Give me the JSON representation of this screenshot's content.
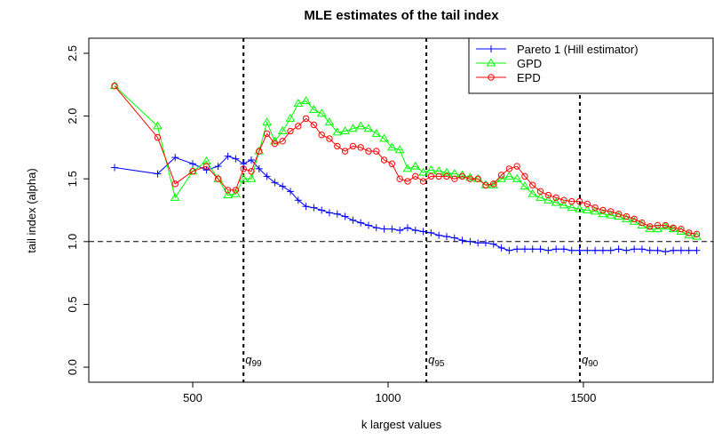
{
  "chart_data": {
    "type": "line",
    "title": "MLE estimates of the tail index",
    "xlabel": "k largest values",
    "ylabel": "tail index (alpha)",
    "xlim": [
      234,
      1832
    ],
    "ylim": [
      -0.12,
      2.62
    ],
    "xticks": [
      500,
      1000,
      1500
    ],
    "yticks": [
      {
        "value": 0,
        "label": "0.0"
      },
      0.5,
      {
        "value": 1,
        "label": "1.0"
      },
      1.5,
      {
        "value": 2,
        "label": "2.0"
      },
      2.5
    ],
    "hlines": [
      1
    ],
    "vlines": [
      630,
      1098,
      1491
    ],
    "annotations": [
      {
        "text": "q",
        "sub": "99",
        "x": 630
      },
      {
        "text": "q",
        "sub": "95",
        "x": 1098
      },
      {
        "text": "q",
        "sub": "90",
        "x": 1491
      }
    ],
    "legend": "top-right",
    "x": [
      300,
      410,
      455,
      500,
      535,
      565,
      590,
      610,
      630,
      650,
      670,
      690,
      710,
      730,
      750,
      770,
      790,
      810,
      830,
      850,
      870,
      890,
      910,
      930,
      950,
      970,
      990,
      1010,
      1030,
      1050,
      1070,
      1090,
      1110,
      1130,
      1150,
      1170,
      1190,
      1210,
      1230,
      1250,
      1270,
      1290,
      1310,
      1330,
      1350,
      1370,
      1390,
      1410,
      1430,
      1450,
      1470,
      1490,
      1510,
      1530,
      1550,
      1570,
      1590,
      1610,
      1630,
      1650,
      1670,
      1690,
      1710,
      1730,
      1750,
      1770,
      1790
    ],
    "series": [
      {
        "name": "Pareto 1 (Hill estimator)",
        "color": "#0000ff",
        "marker": "plus",
        "values": [
          1.59,
          1.54,
          1.67,
          1.62,
          1.57,
          1.6,
          1.68,
          1.66,
          1.62,
          1.65,
          1.58,
          1.52,
          1.47,
          1.44,
          1.4,
          1.33,
          1.28,
          1.27,
          1.25,
          1.23,
          1.22,
          1.2,
          1.17,
          1.15,
          1.13,
          1.11,
          1.1,
          1.1,
          1.09,
          1.11,
          1.09,
          1.08,
          1.07,
          1.05,
          1.04,
          1.03,
          1.01,
          1.0,
          0.99,
          0.99,
          0.98,
          0.95,
          0.93,
          0.94,
          0.94,
          0.94,
          0.94,
          0.93,
          0.94,
          0.94,
          0.93,
          0.93,
          0.93,
          0.93,
          0.93,
          0.93,
          0.94,
          0.93,
          0.94,
          0.94,
          0.93,
          0.93,
          0.92,
          0.93,
          0.93,
          0.93,
          0.93
        ]
      },
      {
        "name": "GPD",
        "color": "#00ff00",
        "marker": "triangle",
        "values": [
          2.24,
          1.92,
          1.35,
          1.56,
          1.64,
          1.5,
          1.37,
          1.38,
          1.5,
          1.5,
          1.72,
          1.95,
          1.8,
          1.88,
          1.98,
          2.1,
          2.12,
          2.05,
          2.02,
          1.95,
          1.87,
          1.88,
          1.9,
          1.92,
          1.9,
          1.86,
          1.82,
          1.75,
          1.73,
          1.58,
          1.6,
          1.55,
          1.57,
          1.56,
          1.55,
          1.54,
          1.53,
          1.51,
          1.5,
          1.45,
          1.45,
          1.5,
          1.52,
          1.5,
          1.44,
          1.38,
          1.35,
          1.33,
          1.31,
          1.29,
          1.27,
          1.26,
          1.25,
          1.24,
          1.22,
          1.21,
          1.2,
          1.18,
          1.16,
          1.13,
          1.1,
          1.1,
          1.12,
          1.1,
          1.08,
          1.05,
          1.04
        ]
      },
      {
        "name": "EPD",
        "color": "#ff0000",
        "marker": "circle",
        "values": [
          2.24,
          1.83,
          1.46,
          1.56,
          1.6,
          1.5,
          1.41,
          1.41,
          1.58,
          1.56,
          1.72,
          1.86,
          1.78,
          1.8,
          1.88,
          1.92,
          1.98,
          1.93,
          1.85,
          1.82,
          1.76,
          1.72,
          1.76,
          1.75,
          1.72,
          1.72,
          1.65,
          1.62,
          1.5,
          1.48,
          1.52,
          1.48,
          1.52,
          1.52,
          1.52,
          1.5,
          1.52,
          1.5,
          1.5,
          1.45,
          1.46,
          1.53,
          1.58,
          1.6,
          1.52,
          1.45,
          1.4,
          1.37,
          1.35,
          1.33,
          1.32,
          1.32,
          1.3,
          1.27,
          1.25,
          1.24,
          1.22,
          1.2,
          1.18,
          1.15,
          1.12,
          1.13,
          1.13,
          1.11,
          1.1,
          1.07,
          1.06
        ]
      }
    ]
  }
}
